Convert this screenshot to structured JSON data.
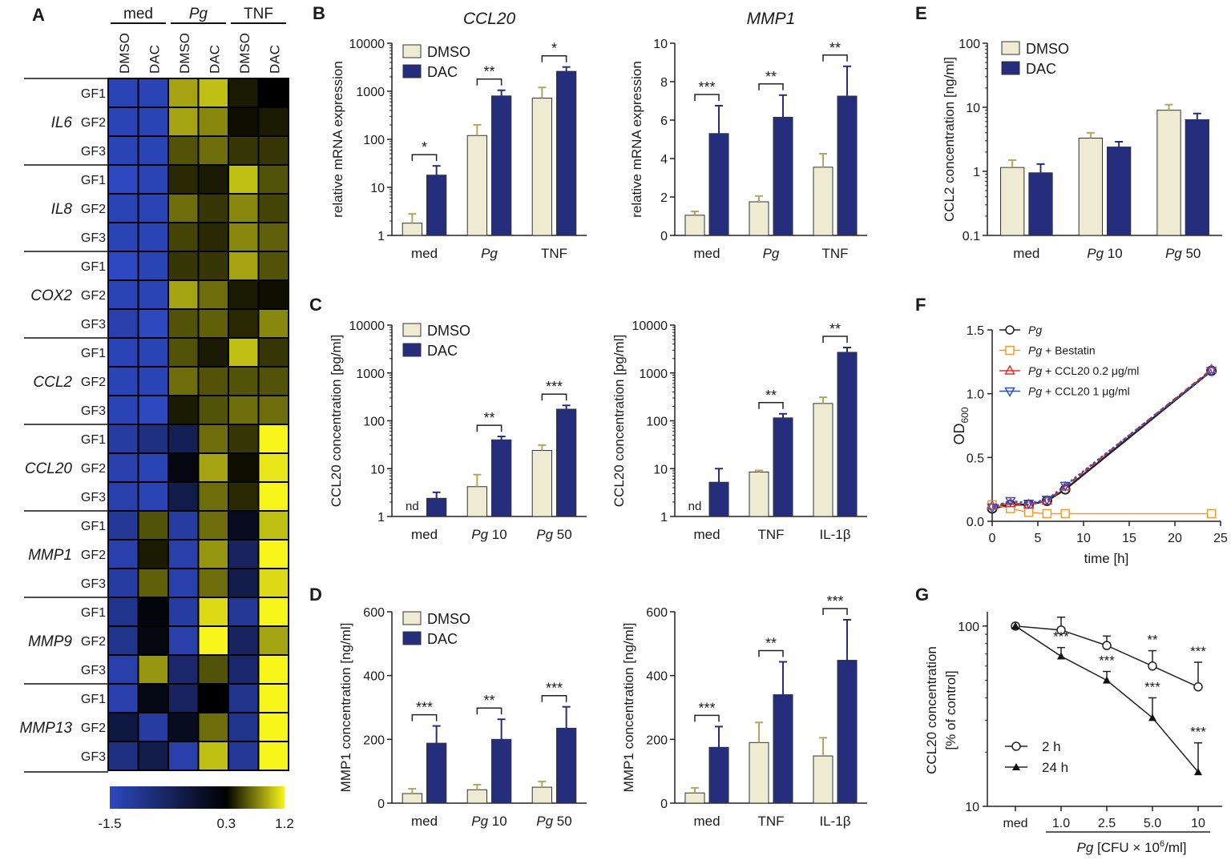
{
  "colors": {
    "dmso": "#efebd2",
    "dac": "#242e7c",
    "cold": "#2e48c0",
    "mid": "#000000",
    "hot": "#f7f51a",
    "pg": "#222222",
    "bestatin": "#f39a2e",
    "ccl20_low": "#e03030",
    "ccl20_high": "#3050c8"
  },
  "chart_data": [
    {
      "panel": "A",
      "type": "heatmap",
      "groups": [
        "med",
        "Pg",
        "TNF"
      ],
      "columns": [
        "DMSO",
        "DAC",
        "DMSO",
        "DAC",
        "DMSO",
        "DAC"
      ],
      "genes": [
        "IL6",
        "IL8",
        "COX2",
        "CCL2",
        "CCL20",
        "MMP1",
        "MMP9",
        "MMP13"
      ],
      "rows": [
        "GF1",
        "GF2",
        "GF3"
      ],
      "scale": {
        "min": -1.5,
        "mid": 0.3,
        "max": 1.2,
        "labels": [
          "-1.5",
          "0.3",
          "1.2"
        ]
      },
      "values": [
        [
          -1.4,
          -1.4,
          0.9,
          1.0,
          0.4,
          0.3
        ],
        [
          -1.4,
          -1.4,
          0.9,
          0.8,
          0.35,
          0.4
        ],
        [
          -1.4,
          -1.4,
          0.6,
          0.7,
          0.5,
          0.5
        ],
        [
          -1.5,
          -1.4,
          0.45,
          0.4,
          1.0,
          0.6
        ],
        [
          -1.4,
          -1.4,
          0.7,
          0.5,
          0.8,
          0.55
        ],
        [
          -1.4,
          -1.4,
          0.55,
          0.45,
          0.8,
          0.65
        ],
        [
          -1.5,
          -1.4,
          0.5,
          0.5,
          0.9,
          0.6
        ],
        [
          -1.4,
          -1.4,
          0.9,
          0.7,
          0.4,
          0.35
        ],
        [
          -1.3,
          -1.5,
          0.6,
          0.65,
          0.45,
          0.8
        ],
        [
          -1.4,
          -1.4,
          0.6,
          0.4,
          1.0,
          0.5
        ],
        [
          -1.4,
          -1.4,
          0.7,
          0.6,
          0.6,
          0.6
        ],
        [
          -1.4,
          -1.5,
          0.4,
          0.6,
          0.7,
          0.7
        ],
        [
          -1.2,
          -0.9,
          -0.5,
          0.7,
          0.5,
          1.2
        ],
        [
          -1.3,
          -1.4,
          0.15,
          0.9,
          0.35,
          1.15
        ],
        [
          -1.3,
          -1.4,
          -0.4,
          0.7,
          0.45,
          1.2
        ],
        [
          -1.1,
          0.6,
          -1.2,
          0.7,
          0.0,
          1.0
        ],
        [
          -1.3,
          0.4,
          -1.3,
          0.85,
          -0.6,
          1.2
        ],
        [
          -1.2,
          0.65,
          -1.3,
          0.7,
          -0.4,
          1.1
        ],
        [
          -1.0,
          0.2,
          -1.2,
          1.1,
          -1.1,
          1.2
        ],
        [
          -1.0,
          0.15,
          -1.3,
          1.2,
          -0.6,
          0.9
        ],
        [
          -1.3,
          0.85,
          -0.7,
          0.6,
          -0.7,
          1.2
        ],
        [
          -1.3,
          0.1,
          -0.6,
          0.3,
          -1.0,
          1.2
        ],
        [
          -0.3,
          -1.2,
          0.0,
          0.7,
          -1.0,
          1.2
        ],
        [
          -0.9,
          -0.4,
          -1.3,
          1.0,
          -1.1,
          1.2
        ]
      ]
    },
    {
      "panel": "B",
      "type": "bar",
      "title": "CCL20",
      "ylabel": "relative mRNA expression",
      "yscale": "log",
      "ylim": [
        1,
        10000
      ],
      "ticks": [
        "1",
        "10",
        "100",
        "1000",
        "10000"
      ],
      "categories": [
        "med",
        "Pg",
        "TNF"
      ],
      "legend": [
        "DMSO",
        "DAC"
      ],
      "series": [
        {
          "name": "DMSO",
          "values": [
            1.8,
            120,
            720
          ],
          "err": [
            2.8,
            200,
            1200
          ]
        },
        {
          "name": "DAC",
          "values": [
            18,
            800,
            2600
          ],
          "err": [
            28,
            1050,
            3200
          ]
        }
      ],
      "sig": [
        "*",
        "**",
        "*"
      ]
    },
    {
      "panel": "B2",
      "type": "bar",
      "title": "MMP1",
      "ylabel": "relative mRNA expression",
      "yscale": "linear",
      "ylim": [
        0,
        10
      ],
      "ticks": [
        "0",
        "2",
        "4",
        "6",
        "8",
        "10"
      ],
      "categories": [
        "med",
        "Pg",
        "TNF"
      ],
      "series": [
        {
          "name": "DMSO",
          "values": [
            1.05,
            1.75,
            3.55
          ],
          "err": [
            1.25,
            2.05,
            4.25
          ]
        },
        {
          "name": "DAC",
          "values": [
            5.3,
            6.15,
            7.25
          ],
          "err": [
            6.75,
            7.3,
            8.8
          ]
        }
      ],
      "sig": [
        "***",
        "**",
        "**"
      ]
    },
    {
      "panel": "C",
      "type": "bar",
      "ylabel": "CCL20 concentration [pg/ml]",
      "yscale": "log",
      "ylim": [
        1,
        10000
      ],
      "ticks": [
        "1",
        "10",
        "100",
        "1000",
        "10000"
      ],
      "categories": [
        "med",
        "Pg 10",
        "Pg 50"
      ],
      "legend": [
        "DMSO",
        "DAC"
      ],
      "nd": "nd",
      "series": [
        {
          "name": "DMSO",
          "values": [
            null,
            4.2,
            24
          ],
          "err": [
            null,
            7.5,
            31
          ]
        },
        {
          "name": "DAC",
          "values": [
            2.4,
            40,
            175
          ],
          "err": [
            3.2,
            47,
            210
          ]
        }
      ],
      "sig": [
        "",
        "**",
        "***"
      ]
    },
    {
      "panel": "C2",
      "type": "bar",
      "ylabel": "CCL20 concentration [pg/ml]",
      "yscale": "log",
      "ylim": [
        1,
        10000
      ],
      "ticks": [
        "1",
        "10",
        "100",
        "1000",
        "10000"
      ],
      "categories": [
        "med",
        "TNF",
        "IL-1β"
      ],
      "nd": "nd",
      "series": [
        {
          "name": "DMSO",
          "values": [
            null,
            8.5,
            230
          ],
          "err": [
            null,
            9.2,
            310
          ]
        },
        {
          "name": "DAC",
          "values": [
            5.2,
            115,
            2700
          ],
          "err": [
            10,
            140,
            3400
          ]
        }
      ],
      "sig": [
        "",
        "**",
        "**"
      ]
    },
    {
      "panel": "D",
      "type": "bar",
      "ylabel": "MMP1 concentration [ng/ml]",
      "yscale": "linear",
      "ylim": [
        0,
        600
      ],
      "ticks": [
        "0",
        "200",
        "400",
        "600"
      ],
      "categories": [
        "med",
        "Pg 10",
        "Pg 50"
      ],
      "legend": [
        "DMSO",
        "DAC"
      ],
      "series": [
        {
          "name": "DMSO",
          "values": [
            30,
            42,
            50
          ],
          "err": [
            45,
            58,
            68
          ]
        },
        {
          "name": "DAC",
          "values": [
            188,
            200,
            235
          ],
          "err": [
            242,
            263,
            302
          ]
        }
      ],
      "sig": [
        "***",
        "**",
        "***"
      ]
    },
    {
      "panel": "D2",
      "type": "bar",
      "ylabel": "MMP1 concentration [ng/ml]",
      "yscale": "linear",
      "ylim": [
        0,
        600
      ],
      "ticks": [
        "0",
        "200",
        "400",
        "600"
      ],
      "categories": [
        "med",
        "TNF",
        "IL-1β"
      ],
      "series": [
        {
          "name": "DMSO",
          "values": [
            32,
            190,
            148
          ],
          "err": [
            48,
            253,
            205
          ]
        },
        {
          "name": "DAC",
          "values": [
            175,
            340,
            448
          ],
          "err": [
            240,
            443,
            575
          ]
        }
      ],
      "sig": [
        "***",
        "**",
        "***"
      ]
    },
    {
      "panel": "E",
      "type": "bar",
      "ylabel": "CCL2 concentration [ng/ml]",
      "yscale": "log",
      "ylim": [
        0.1,
        100
      ],
      "ticks": [
        "0.1",
        "1",
        "10",
        "100"
      ],
      "categories": [
        "med",
        "Pg 10",
        "Pg 50"
      ],
      "legend": [
        "DMSO",
        "DAC"
      ],
      "series": [
        {
          "name": "DMSO",
          "values": [
            1.15,
            3.3,
            9.0
          ],
          "err": [
            1.5,
            4.0,
            11
          ]
        },
        {
          "name": "DAC",
          "values": [
            0.95,
            2.4,
            6.4
          ],
          "err": [
            1.3,
            2.9,
            8.0
          ]
        }
      ]
    },
    {
      "panel": "F",
      "type": "line",
      "xlabel": "time [h]",
      "ylabel": "OD",
      "ylabel_sub": "600",
      "xlim": [
        0,
        25
      ],
      "ylim": [
        0,
        1.5
      ],
      "xticks": [
        "0",
        "5",
        "10",
        "15",
        "20",
        "25"
      ],
      "yticks": [
        "0.0",
        "0.5",
        "1.0",
        "1.5"
      ],
      "x": [
        0,
        2,
        4,
        6,
        8,
        24
      ],
      "series": [
        {
          "name": "Pg",
          "name_ital": "Pg",
          "name_rest": "",
          "values": [
            0.1,
            0.13,
            0.13,
            0.16,
            0.25,
            1.18
          ]
        },
        {
          "name": "Pg + Bestatin",
          "name_ital": "Pg",
          "name_rest": " + Bestatin",
          "values": [
            0.13,
            0.1,
            0.07,
            0.06,
            0.06,
            0.06
          ]
        },
        {
          "name": "Pg + CCL20 0.2 μg/ml",
          "name_ital": "Pg",
          "name_rest": " + CCL20 0.2 μg/ml",
          "values": [
            0.12,
            0.14,
            0.13,
            0.16,
            0.27,
            1.19
          ]
        },
        {
          "name": "Pg + CCL20 1 μg/ml",
          "name_ital": "Pg",
          "name_rest": " + CCL20 1 μg/ml",
          "values": [
            0.11,
            0.16,
            0.14,
            0.17,
            0.28,
            1.18
          ]
        }
      ]
    },
    {
      "panel": "G",
      "type": "line",
      "ylabel": "CCL20 concentration",
      "ylabel2": "[% of control]",
      "yscale": "log",
      "ylim": [
        10,
        120
      ],
      "yticks": [
        "10",
        "100"
      ],
      "categories": [
        "med",
        "1.0",
        "2.5",
        "5.0",
        "10"
      ],
      "xlabel_ital": "Pg",
      "xlabel_rest": " [CFU × 10",
      "xlabel_sup": "6",
      "xlabel_end": "/ml]",
      "series": [
        {
          "name": "2 h",
          "values": [
            100,
            95,
            78,
            60,
            46
          ],
          "err": [
            100,
            112,
            88,
            73,
            63
          ],
          "sig": [
            "",
            "",
            "",
            "**",
            "***"
          ]
        },
        {
          "name": "24 h",
          "values": [
            100,
            68,
            50,
            31,
            15.5
          ],
          "err": [
            100,
            76,
            56,
            40,
            22.5
          ],
          "sig": [
            "",
            "***",
            "***",
            "***",
            "***"
          ]
        }
      ]
    }
  ]
}
